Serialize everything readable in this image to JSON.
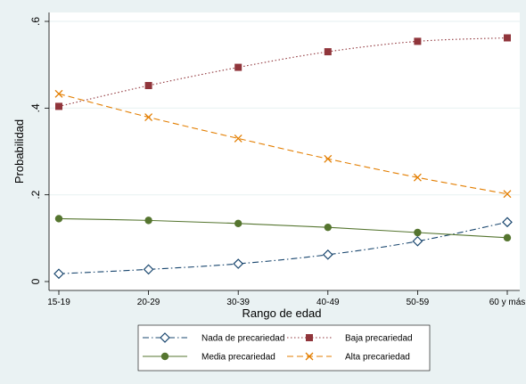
{
  "chart_data": {
    "type": "line",
    "title": "",
    "xlabel": "Rango de edad",
    "ylabel": "Probabilidad",
    "categories": [
      "15-19",
      "20-29",
      "30-39",
      "40-49",
      "50-59",
      "60 y más"
    ],
    "ylim": [
      0,
      0.6
    ],
    "yticks": [
      0,
      0.2,
      0.4,
      0.6
    ],
    "ytick_labels": [
      "0",
      ".2",
      ".4",
      ".6"
    ],
    "grid": true,
    "legend_position": "bottom",
    "series": [
      {
        "name": "Nada de precariedad",
        "values": [
          0.018,
          0.028,
          0.041,
          0.062,
          0.093,
          0.137
        ],
        "color": "#1a476f",
        "line": "dash-dot",
        "marker": "hollow-diamond"
      },
      {
        "name": "Baja precariedad",
        "values": [
          0.404,
          0.452,
          0.494,
          0.53,
          0.554,
          0.562
        ],
        "color": "#90353b",
        "line": "dotted",
        "marker": "square"
      },
      {
        "name": "Media precariedad",
        "values": [
          0.145,
          0.141,
          0.134,
          0.125,
          0.113,
          0.101
        ],
        "color": "#55752f",
        "line": "solid",
        "marker": "circle"
      },
      {
        "name": "Alta precariedad",
        "values": [
          0.433,
          0.379,
          0.33,
          0.283,
          0.24,
          0.202
        ],
        "color": "#e37e00",
        "line": "dashed",
        "marker": "x"
      }
    ]
  }
}
